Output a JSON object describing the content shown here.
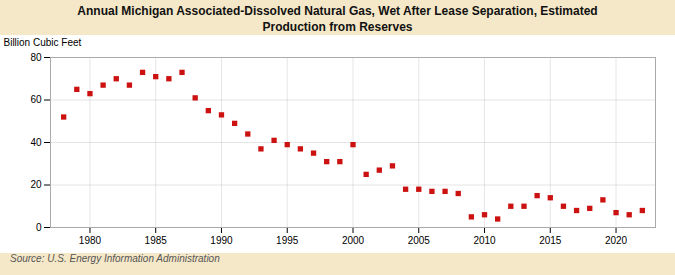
{
  "chart_data": {
    "type": "scatter",
    "title": "Annual Michigan Associated-Dissolved Natural Gas, Wet After Lease Separation, Estimated\nProduction from Reserves",
    "ylabel": "Billion Cubic Feet",
    "source": "Source: U.S. Energy Information Administration",
    "color": "#cc1111",
    "marker": "square",
    "grid": true,
    "xlim": [
      1977,
      2023
    ],
    "ylim": [
      0,
      80
    ],
    "xticks": [
      1980,
      1985,
      1990,
      1995,
      2000,
      2005,
      2010,
      2015,
      2020
    ],
    "yticks": [
      0,
      20,
      40,
      60,
      80
    ],
    "x": [
      1978,
      1979,
      1980,
      1981,
      1982,
      1983,
      1984,
      1985,
      1986,
      1987,
      1988,
      1989,
      1990,
      1991,
      1992,
      1993,
      1994,
      1995,
      1996,
      1997,
      1998,
      1999,
      2000,
      2001,
      2002,
      2003,
      2004,
      2005,
      2006,
      2007,
      2008,
      2009,
      2010,
      2011,
      2012,
      2013,
      2014,
      2015,
      2016,
      2017,
      2018,
      2019,
      2020,
      2021,
      2022
    ],
    "values": [
      52,
      65,
      63,
      67,
      70,
      67,
      73,
      71,
      70,
      73,
      61,
      55,
      53,
      49,
      44,
      37,
      41,
      39,
      37,
      35,
      31,
      31,
      39,
      25,
      27,
      29,
      18,
      18,
      17,
      17,
      16,
      5,
      6,
      4,
      10,
      10,
      15,
      14,
      10,
      8,
      9,
      13,
      7,
      6,
      8
    ]
  }
}
